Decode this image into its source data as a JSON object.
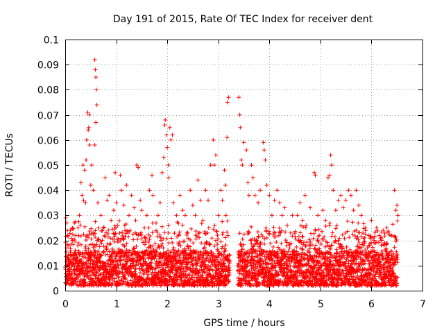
{
  "chart_data": {
    "type": "scatter",
    "title": "Day 191 of 2015, Rate Of TEC Index for receiver dent",
    "xlabel": "GPS time / hours",
    "ylabel": "ROTI / TECUs",
    "xlim": [
      0,
      7
    ],
    "ylim": [
      0,
      0.1
    ],
    "x_ticks": [
      0,
      1,
      2,
      3,
      4,
      5,
      6,
      7
    ],
    "x_tick_labels": [
      "0",
      "1",
      "2",
      "3",
      "4",
      "5",
      "6",
      "7"
    ],
    "y_ticks": [
      0,
      0.01,
      0.02,
      0.03,
      0.04,
      0.05,
      0.06,
      0.07,
      0.08,
      0.09,
      0.1
    ],
    "y_tick_labels": [
      "0",
      "0.01",
      "0.02",
      "0.03",
      "0.04",
      "0.05",
      "0.06",
      "0.07",
      "0.08",
      "0.09",
      "0.1"
    ],
    "grid": true,
    "marker": "+",
    "series_color": "#ff0000",
    "data_gap_hours": [
      3.22,
      3.38
    ],
    "series": [
      {
        "name": "ROTI",
        "points": [
          [
            0.01,
            0.029
          ],
          [
            0.03,
            0.027
          ],
          [
            0.05,
            0.022
          ],
          [
            0.07,
            0.018
          ],
          [
            0.1,
            0.024
          ],
          [
            0.14,
            0.02
          ],
          [
            0.18,
            0.027
          ],
          [
            0.21,
            0.022
          ],
          [
            0.25,
            0.025
          ],
          [
            0.28,
            0.03
          ],
          [
            0.31,
            0.043
          ],
          [
            0.33,
            0.038
          ],
          [
            0.35,
            0.05
          ],
          [
            0.36,
            0.036
          ],
          [
            0.38,
            0.048
          ],
          [
            0.4,
            0.035
          ],
          [
            0.41,
            0.052
          ],
          [
            0.42,
            0.06
          ],
          [
            0.44,
            0.071
          ],
          [
            0.45,
            0.064
          ],
          [
            0.46,
            0.065
          ],
          [
            0.47,
            0.07
          ],
          [
            0.48,
            0.058
          ],
          [
            0.5,
            0.042
          ],
          [
            0.52,
            0.05
          ],
          [
            0.55,
            0.04
          ],
          [
            0.58,
            0.092
          ],
          [
            0.59,
            0.088
          ],
          [
            0.6,
            0.085
          ],
          [
            0.61,
            0.08
          ],
          [
            0.62,
            0.074
          ],
          [
            0.6,
            0.067
          ],
          [
            0.58,
            0.058
          ],
          [
            0.64,
            0.035
          ],
          [
            0.7,
            0.03
          ],
          [
            0.75,
            0.025
          ],
          [
            0.78,
            0.045
          ],
          [
            0.82,
            0.036
          ],
          [
            0.86,
            0.038
          ],
          [
            0.9,
            0.028
          ],
          [
            0.95,
            0.032
          ],
          [
            0.98,
            0.047
          ],
          [
            1.0,
            0.035
          ],
          [
            1.03,
            0.026
          ],
          [
            1.08,
            0.046
          ],
          [
            1.1,
            0.04
          ],
          [
            1.15,
            0.034
          ],
          [
            1.2,
            0.042
          ],
          [
            1.25,
            0.03
          ],
          [
            1.3,
            0.038
          ],
          [
            1.35,
            0.033
          ],
          [
            1.38,
            0.028
          ],
          [
            1.4,
            0.05
          ],
          [
            1.43,
            0.049
          ],
          [
            1.47,
            0.036
          ],
          [
            1.5,
            0.032
          ],
          [
            1.55,
            0.025
          ],
          [
            1.6,
            0.03
          ],
          [
            1.65,
            0.04
          ],
          [
            1.7,
            0.046
          ],
          [
            1.72,
            0.038
          ],
          [
            1.78,
            0.027
          ],
          [
            1.82,
            0.03
          ],
          [
            1.86,
            0.035
          ],
          [
            1.9,
            0.047
          ],
          [
            1.93,
            0.053
          ],
          [
            1.95,
            0.066
          ],
          [
            1.96,
            0.068
          ],
          [
            1.98,
            0.062
          ],
          [
            2.0,
            0.057
          ],
          [
            2.02,
            0.05
          ],
          [
            2.05,
            0.065
          ],
          [
            2.07,
            0.06
          ],
          [
            2.1,
            0.062
          ],
          [
            2.03,
            0.045
          ],
          [
            2.12,
            0.035
          ],
          [
            2.18,
            0.03
          ],
          [
            2.25,
            0.038
          ],
          [
            2.3,
            0.032
          ],
          [
            2.35,
            0.03
          ],
          [
            2.45,
            0.04
          ],
          [
            2.5,
            0.034
          ],
          [
            2.55,
            0.03
          ],
          [
            2.6,
            0.044
          ],
          [
            2.65,
            0.036
          ],
          [
            2.7,
            0.028
          ],
          [
            2.75,
            0.04
          ],
          [
            2.8,
            0.036
          ],
          [
            2.85,
            0.05
          ],
          [
            2.9,
            0.06
          ],
          [
            2.92,
            0.05
          ],
          [
            2.95,
            0.054
          ],
          [
            3.0,
            0.03
          ],
          [
            3.05,
            0.04
          ],
          [
            3.08,
            0.036
          ],
          [
            3.12,
            0.048
          ],
          [
            3.14,
            0.042
          ],
          [
            3.17,
            0.061
          ],
          [
            3.18,
            0.075
          ],
          [
            3.2,
            0.077
          ],
          [
            3.15,
            0.03
          ],
          [
            3.4,
            0.077
          ],
          [
            3.42,
            0.07
          ],
          [
            3.43,
            0.065
          ],
          [
            3.45,
            0.052
          ],
          [
            3.47,
            0.05
          ],
          [
            3.5,
            0.059
          ],
          [
            3.55,
            0.056
          ],
          [
            3.58,
            0.043
          ],
          [
            3.6,
            0.038
          ],
          [
            3.65,
            0.05
          ],
          [
            3.68,
            0.045
          ],
          [
            3.72,
            0.038
          ],
          [
            3.78,
            0.035
          ],
          [
            3.82,
            0.04
          ],
          [
            3.88,
            0.059
          ],
          [
            3.9,
            0.056
          ],
          [
            3.92,
            0.052
          ],
          [
            3.95,
            0.042
          ],
          [
            4.0,
            0.038
          ],
          [
            4.05,
            0.03
          ],
          [
            4.1,
            0.036
          ],
          [
            4.15,
            0.04
          ],
          [
            4.2,
            0.035
          ],
          [
            4.25,
            0.03
          ],
          [
            4.3,
            0.033
          ],
          [
            4.35,
            0.026
          ],
          [
            4.45,
            0.03
          ],
          [
            4.55,
            0.03
          ],
          [
            4.6,
            0.035
          ],
          [
            4.65,
            0.028
          ],
          [
            4.7,
            0.038
          ],
          [
            4.72,
            0.026
          ],
          [
            4.8,
            0.033
          ],
          [
            4.88,
            0.047
          ],
          [
            4.9,
            0.046
          ],
          [
            4.95,
            0.03
          ],
          [
            5.05,
            0.032
          ],
          [
            5.1,
            0.028
          ],
          [
            5.15,
            0.045
          ],
          [
            5.18,
            0.046
          ],
          [
            5.2,
            0.054
          ],
          [
            5.22,
            0.05
          ],
          [
            5.25,
            0.04
          ],
          [
            5.3,
            0.032
          ],
          [
            5.35,
            0.036
          ],
          [
            5.4,
            0.038
          ],
          [
            5.45,
            0.033
          ],
          [
            5.5,
            0.036
          ],
          [
            5.55,
            0.04
          ],
          [
            5.6,
            0.038
          ],
          [
            5.65,
            0.032
          ],
          [
            5.7,
            0.04
          ],
          [
            5.75,
            0.034
          ],
          [
            5.8,
            0.03
          ],
          [
            5.88,
            0.025
          ],
          [
            5.95,
            0.022
          ],
          [
            6.0,
            0.028
          ],
          [
            6.05,
            0.02
          ],
          [
            6.1,
            0.025
          ],
          [
            6.15,
            0.022
          ],
          [
            6.2,
            0.02
          ],
          [
            6.25,
            0.018
          ],
          [
            6.3,
            0.025
          ],
          [
            6.35,
            0.015
          ],
          [
            6.4,
            0.022
          ],
          [
            6.45,
            0.04
          ],
          [
            6.48,
            0.032
          ],
          [
            6.5,
            0.034
          ],
          [
            6.52,
            0.03
          ]
        ]
      }
    ]
  }
}
